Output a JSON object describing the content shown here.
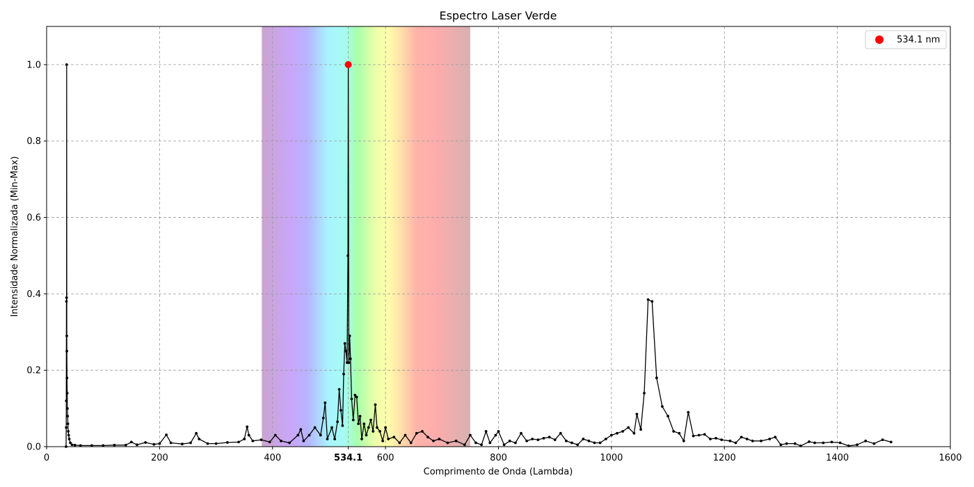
{
  "chart_data": {
    "type": "line",
    "title": "Espectro Laser Verde",
    "xlabel": "Comprimento de Onda (Lambda)",
    "ylabel": "Intensidade Normalizada (Min-Max)",
    "xlim": [
      0,
      1600
    ],
    "ylim": [
      0,
      1.1
    ],
    "xticks": [
      0,
      200,
      400,
      600,
      800,
      1000,
      1200,
      1400,
      1600
    ],
    "xtick_labels": [
      "0",
      "200",
      "400",
      "600",
      "800",
      "1000",
      "1200",
      "1400",
      "1600"
    ],
    "yticks": [
      0.0,
      0.2,
      0.4,
      0.6,
      0.8,
      1.0
    ],
    "ytick_labels": [
      "0.0",
      "0.2",
      "0.4",
      "0.6",
      "0.8",
      "1.0"
    ],
    "grid": true,
    "line_color": "#000000",
    "visible_spectrum_band": [
      381,
      750
    ],
    "peak": {
      "x": 534.1,
      "y": 1.0,
      "tick_label": "534.1",
      "legend_label": "534.1 nm",
      "color": "#ff0000"
    },
    "legend_position": "top-right",
    "series": [
      {
        "values": [
          [
            34.5,
            0.0
          ],
          [
            34.7,
            0.05
          ],
          [
            34.9,
            0.12
          ],
          [
            35.1,
            0.38
          ],
          [
            35.3,
            0.39
          ],
          [
            35.5,
            1.0
          ],
          [
            35.7,
            0.29
          ],
          [
            35.9,
            0.25
          ],
          [
            36.1,
            0.18
          ],
          [
            36.4,
            0.14
          ],
          [
            36.8,
            0.1
          ],
          [
            37.2,
            0.08
          ],
          [
            37.7,
            0.06
          ],
          [
            38.3,
            0.04
          ],
          [
            39.0,
            0.03
          ],
          [
            40,
            0.02
          ],
          [
            42,
            0.01
          ],
          [
            45,
            0.005
          ],
          [
            50,
            0.004
          ],
          [
            60,
            0.003
          ],
          [
            80,
            0.003
          ],
          [
            100,
            0.003
          ],
          [
            120,
            0.004
          ],
          [
            140,
            0.004
          ],
          [
            150,
            0.012
          ],
          [
            160,
            0.005
          ],
          [
            175,
            0.011
          ],
          [
            190,
            0.006
          ],
          [
            200,
            0.008
          ],
          [
            212,
            0.031
          ],
          [
            220,
            0.01
          ],
          [
            240,
            0.007
          ],
          [
            255,
            0.01
          ],
          [
            265,
            0.035
          ],
          [
            270,
            0.02
          ],
          [
            285,
            0.008
          ],
          [
            300,
            0.008
          ],
          [
            320,
            0.011
          ],
          [
            340,
            0.012
          ],
          [
            350,
            0.02
          ],
          [
            355,
            0.052
          ],
          [
            358,
            0.03
          ],
          [
            365,
            0.015
          ],
          [
            380,
            0.018
          ],
          [
            395,
            0.012
          ],
          [
            405,
            0.03
          ],
          [
            415,
            0.015
          ],
          [
            430,
            0.01
          ],
          [
            445,
            0.03
          ],
          [
            450,
            0.045
          ],
          [
            455,
            0.015
          ],
          [
            465,
            0.03
          ],
          [
            475,
            0.05
          ],
          [
            485,
            0.03
          ],
          [
            490,
            0.075
          ],
          [
            493,
            0.115
          ],
          [
            497,
            0.02
          ],
          [
            505,
            0.05
          ],
          [
            510,
            0.02
          ],
          [
            515,
            0.065
          ],
          [
            518,
            0.15
          ],
          [
            521,
            0.095
          ],
          [
            524,
            0.055
          ],
          [
            526,
            0.19
          ],
          [
            528,
            0.27
          ],
          [
            530,
            0.25
          ],
          [
            532,
            0.22
          ],
          [
            533.5,
            0.5
          ],
          [
            534.1,
            1.0
          ],
          [
            535,
            0.22
          ],
          [
            536.5,
            0.29
          ],
          [
            538,
            0.23
          ],
          [
            540,
            0.125
          ],
          [
            543,
            0.07
          ],
          [
            546,
            0.135
          ],
          [
            549,
            0.13
          ],
          [
            552,
            0.06
          ],
          [
            555,
            0.08
          ],
          [
            558,
            0.02
          ],
          [
            562,
            0.06
          ],
          [
            566,
            0.03
          ],
          [
            570,
            0.05
          ],
          [
            574,
            0.07
          ],
          [
            578,
            0.04
          ],
          [
            582,
            0.11
          ],
          [
            585,
            0.05
          ],
          [
            590,
            0.04
          ],
          [
            595,
            0.015
          ],
          [
            600,
            0.05
          ],
          [
            605,
            0.02
          ],
          [
            615,
            0.025
          ],
          [
            625,
            0.01
          ],
          [
            635,
            0.03
          ],
          [
            645,
            0.01
          ],
          [
            655,
            0.035
          ],
          [
            665,
            0.04
          ],
          [
            675,
            0.025
          ],
          [
            685,
            0.015
          ],
          [
            695,
            0.02
          ],
          [
            710,
            0.01
          ],
          [
            725,
            0.015
          ],
          [
            740,
            0.005
          ],
          [
            750,
            0.03
          ],
          [
            760,
            0.01
          ],
          [
            770,
            0.005
          ],
          [
            778,
            0.04
          ],
          [
            785,
            0.01
          ],
          [
            795,
            0.03
          ],
          [
            800,
            0.04
          ],
          [
            810,
            0.005
          ],
          [
            820,
            0.015
          ],
          [
            830,
            0.01
          ],
          [
            840,
            0.035
          ],
          [
            850,
            0.015
          ],
          [
            860,
            0.02
          ],
          [
            870,
            0.018
          ],
          [
            880,
            0.022
          ],
          [
            890,
            0.025
          ],
          [
            900,
            0.018
          ],
          [
            910,
            0.035
          ],
          [
            920,
            0.015
          ],
          [
            930,
            0.01
          ],
          [
            940,
            0.005
          ],
          [
            950,
            0.02
          ],
          [
            960,
            0.015
          ],
          [
            970,
            0.01
          ],
          [
            980,
            0.01
          ],
          [
            990,
            0.02
          ],
          [
            1000,
            0.03
          ],
          [
            1010,
            0.035
          ],
          [
            1020,
            0.04
          ],
          [
            1030,
            0.05
          ],
          [
            1040,
            0.035
          ],
          [
            1045,
            0.085
          ],
          [
            1052,
            0.045
          ],
          [
            1058,
            0.14
          ],
          [
            1065,
            0.385
          ],
          [
            1072,
            0.38
          ],
          [
            1080,
            0.18
          ],
          [
            1090,
            0.105
          ],
          [
            1100,
            0.08
          ],
          [
            1110,
            0.04
          ],
          [
            1120,
            0.035
          ],
          [
            1128,
            0.015
          ],
          [
            1136,
            0.09
          ],
          [
            1145,
            0.028
          ],
          [
            1155,
            0.03
          ],
          [
            1165,
            0.032
          ],
          [
            1175,
            0.02
          ],
          [
            1185,
            0.022
          ],
          [
            1195,
            0.018
          ],
          [
            1210,
            0.015
          ],
          [
            1220,
            0.01
          ],
          [
            1230,
            0.025
          ],
          [
            1240,
            0.02
          ],
          [
            1250,
            0.015
          ],
          [
            1265,
            0.015
          ],
          [
            1280,
            0.02
          ],
          [
            1290,
            0.025
          ],
          [
            1300,
            0.005
          ],
          [
            1310,
            0.008
          ],
          [
            1325,
            0.008
          ],
          [
            1335,
            0.002
          ],
          [
            1350,
            0.013
          ],
          [
            1360,
            0.01
          ],
          [
            1375,
            0.01
          ],
          [
            1390,
            0.012
          ],
          [
            1405,
            0.01
          ],
          [
            1420,
            0.002
          ],
          [
            1435,
            0.005
          ],
          [
            1450,
            0.015
          ],
          [
            1465,
            0.008
          ],
          [
            1480,
            0.018
          ],
          [
            1495,
            0.012
          ]
        ]
      }
    ]
  }
}
